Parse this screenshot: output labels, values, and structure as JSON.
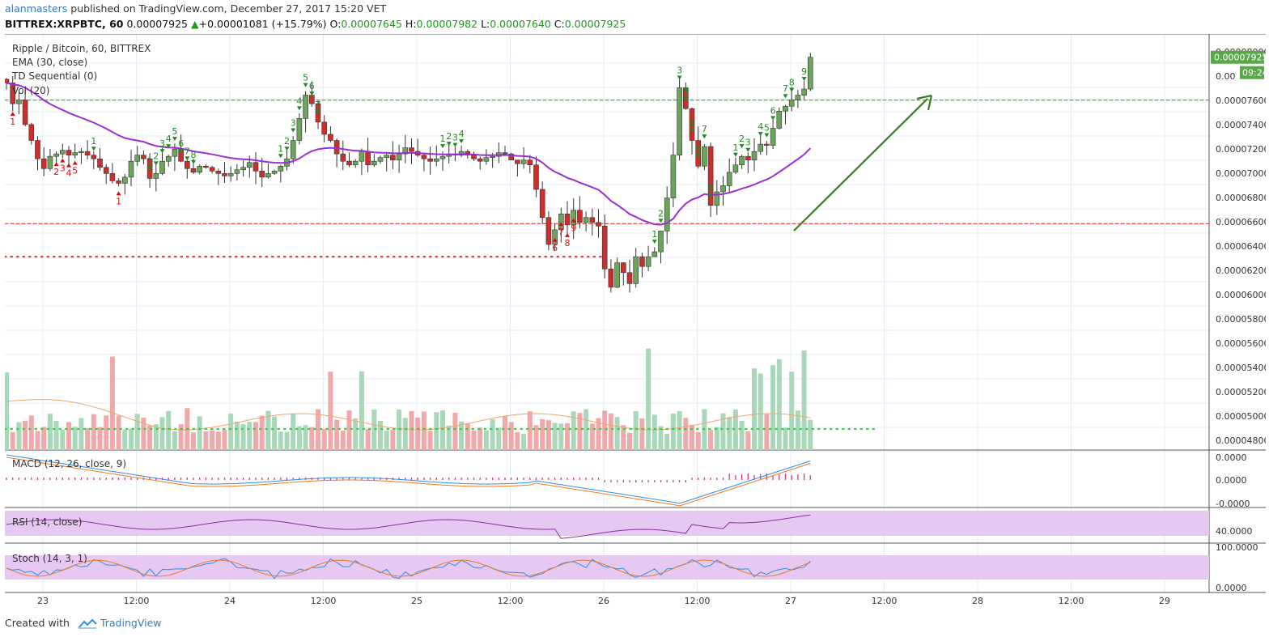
{
  "header": {
    "user": "alanmasters",
    "published_text": "published on TradingView.com, December 27, 2017 15:20 VET",
    "symbol": "BITTREX:XRPBTC, 60",
    "last": "0.00007925",
    "change_arrow": "▲",
    "change": "+0.00001081 (+15.79%)",
    "o_label": "O:",
    "o": "0.00007645",
    "h_label": "H:",
    "h": "0.00007982",
    "l_label": "L:",
    "l": "0.00007640",
    "c_label": "C:",
    "c": "0.00007925"
  },
  "legend": {
    "title": "Ripple / Bitcoin, 60, BITTREX",
    "ema": "EMA (30, close)",
    "td": "TD Sequential (0)",
    "vol": "Vol (20)",
    "macd": "MACD (12, 26, close, 9)",
    "rsi": "RSI (14, close)",
    "stoch": "Stoch (14, 3, 1)"
  },
  "footer": {
    "created_with": "Created with",
    "brand": "TradingView"
  },
  "colors": {
    "up": "#6ba55a",
    "down": "#c9302c",
    "ema": "#9b2fd4",
    "vol_up": "#a8d8b9",
    "vol_down": "#f0a8ab",
    "macd": "#2f8fe0",
    "signal": "#f07a22",
    "rsi": "#8a2f9e",
    "stoch_k": "#2f8fe0",
    "stoch_d": "#f07a22",
    "band": "#e5c9f2",
    "arrow": "#3d7a28",
    "td_buy": "#1f8a1f",
    "td_sell": "#d01010",
    "support": "#e03a3a",
    "resist": "#2ec02e"
  },
  "chart_data": {
    "type": "candlestick",
    "title": "Ripple / Bitcoin, 60, BITTREX",
    "x_ticks": [
      "23",
      "12:00",
      "24",
      "12:00",
      "25",
      "12:00",
      "26",
      "12:00",
      "27",
      "12:00",
      "28",
      "12:00",
      "29"
    ],
    "price_ticks": [
      "0.00008000",
      "0.00",
      "0.00007600",
      "0.00007400",
      "0.00007200",
      "0.00007000",
      "0.00006800",
      "0.00006600",
      "0.00006400",
      "0.00006200",
      "0.00006000",
      "0.00005800",
      "0.00005600",
      "0.00005400",
      "0.00005200",
      "0.00005000",
      "0.00004800"
    ],
    "price_range": [
      4.72e-05,
      8.12e-05
    ],
    "last_price_label": "0.00007925",
    "countdown_label": "09:24",
    "horizontal_levels": [
      {
        "name": "resistance",
        "value": 7.58e-05,
        "style": "dashed",
        "color": "resist"
      },
      {
        "name": "support",
        "value": 6.57e-05,
        "style": "dashed",
        "color": "support"
      },
      {
        "name": "support-2",
        "value": 6.3e-05,
        "style": "dotted",
        "color": "support"
      }
    ],
    "close": [
      7.72,
      7.55,
      7.58,
      7.38,
      7.25,
      7.1,
      7.02,
      7.12,
      7.14,
      7.17,
      7.13,
      7.15,
      7.16,
      7.13,
      7.1,
      7.03,
      6.98,
      6.92,
      6.9,
      6.95,
      7.08,
      7.13,
      7.1,
      6.94,
      6.98,
      7.08,
      7.12,
      7.18,
      7.08,
      7.02,
      6.99,
      7.04,
      7.03,
      7.0,
      6.98,
      6.96,
      6.98,
      7.01,
      7.03,
      7.07,
      7.0,
      6.95,
      6.98,
      7.0,
      7.04,
      7.1,
      7.25,
      7.43,
      7.62,
      7.55,
      7.4,
      7.3,
      7.25,
      7.14,
      7.08,
      7.05,
      7.08,
      7.16,
      7.05,
      7.08,
      7.11,
      7.13,
      7.09,
      7.14,
      7.19,
      7.16,
      7.13,
      7.1,
      7.08,
      7.1,
      7.12,
      7.14,
      7.13,
      7.16,
      7.13,
      7.1,
      7.08,
      7.11,
      7.12,
      7.15,
      7.14,
      7.09,
      7.06,
      7.09,
      7.05,
      6.85,
      6.62,
      6.4,
      6.52,
      6.65,
      6.56,
      6.68,
      6.58,
      6.62,
      6.58,
      6.55,
      6.2,
      6.05,
      6.25,
      6.17,
      6.08,
      6.3,
      6.22,
      6.3,
      6.34,
      6.51,
      6.78,
      7.13,
      7.68,
      7.51,
      7.25,
      7.04,
      7.2,
      6.72,
      6.83,
      6.88,
      6.99,
      7.05,
      7.12,
      7.09,
      7.16,
      7.22,
      7.21,
      7.35,
      7.49,
      7.53,
      7.58,
      7.62,
      7.67,
      7.93
    ],
    "ema_30": "EMA (30, close)",
    "td_sequential": "TD Sequential (0)",
    "volume": {
      "name": "Vol (20)",
      "range": [
        0,
        100
      ],
      "ma_level": 30
    },
    "macd": {
      "name": "MACD (12, 26, close, 9)",
      "ticks": [
        "0.0000",
        "0.0000",
        "-0.0000"
      ]
    },
    "rsi": {
      "name": "RSI (14, close)",
      "ticks": [
        "40.0000"
      ],
      "band": [
        30,
        70
      ]
    },
    "stoch": {
      "name": "Stoch (14, 3, 1)",
      "ticks": [
        "100.0000",
        "0.0000"
      ],
      "band": [
        20,
        80
      ]
    }
  }
}
